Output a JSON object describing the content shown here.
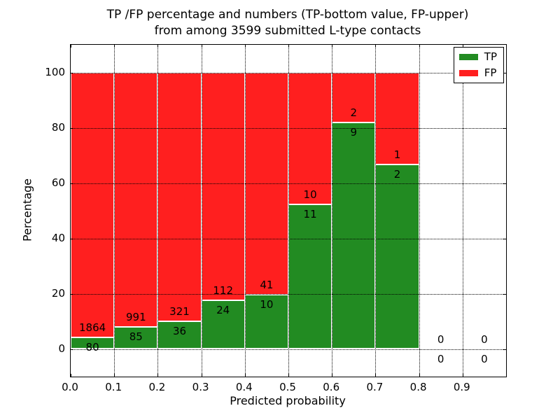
{
  "chart_data": {
    "type": "bar",
    "stacked": true,
    "normalized_to_percent": true,
    "title_lines": [
      "TP /FP percentage and numbers (TP-bottom value, FP-upper)",
      "from among 3599 submitted L-type contacts"
    ],
    "total_contacts": 3599,
    "xlabel": "Predicted probability",
    "ylabel": "Percentage",
    "xlim": [
      0.0,
      1.0
    ],
    "ylim": [
      -10,
      110
    ],
    "xtick_values": [
      0.0,
      0.1,
      0.2,
      0.3,
      0.4,
      0.5,
      0.6,
      0.7,
      0.8,
      0.9
    ],
    "xtick_labels": [
      "0.0",
      "0.1",
      "0.2",
      "0.3",
      "0.4",
      "0.5",
      "0.6",
      "0.7",
      "0.8",
      "0.9"
    ],
    "ytick_values": [
      0,
      20,
      40,
      60,
      80,
      100
    ],
    "ytick_labels": [
      "0",
      "20",
      "40",
      "60",
      "80",
      "100"
    ],
    "grid": "dotted-black-over-bars",
    "legend_position": "upper right",
    "series": [
      {
        "name": "TP",
        "color": "#228b22"
      },
      {
        "name": "FP",
        "color": "#ff1f1f"
      }
    ],
    "bin_width": 0.1,
    "bins": [
      {
        "x_start": 0.0,
        "x_end": 0.1,
        "tp_count": 80,
        "fp_count": 1864,
        "tp_percent": 4.12,
        "fp_percent": 95.88
      },
      {
        "x_start": 0.1,
        "x_end": 0.2,
        "tp_count": 85,
        "fp_count": 991,
        "tp_percent": 7.9,
        "fp_percent": 92.1
      },
      {
        "x_start": 0.2,
        "x_end": 0.3,
        "tp_count": 36,
        "fp_count": 321,
        "tp_percent": 10.08,
        "fp_percent": 89.92
      },
      {
        "x_start": 0.3,
        "x_end": 0.4,
        "tp_count": 24,
        "fp_count": 112,
        "tp_percent": 17.65,
        "fp_percent": 82.35
      },
      {
        "x_start": 0.4,
        "x_end": 0.5,
        "tp_count": 10,
        "fp_count": 41,
        "tp_percent": 19.61,
        "fp_percent": 80.39
      },
      {
        "x_start": 0.5,
        "x_end": 0.6,
        "tp_count": 11,
        "fp_count": 10,
        "tp_percent": 52.38,
        "fp_percent": 47.62
      },
      {
        "x_start": 0.6,
        "x_end": 0.7,
        "tp_count": 9,
        "fp_count": 2,
        "tp_percent": 81.82,
        "fp_percent": 18.18
      },
      {
        "x_start": 0.7,
        "x_end": 0.8,
        "tp_count": 2,
        "fp_count": 1,
        "tp_percent": 66.67,
        "fp_percent": 33.33
      },
      {
        "x_start": 0.8,
        "x_end": 0.9,
        "tp_count": 0,
        "fp_count": 0,
        "tp_percent": null,
        "fp_percent": null
      },
      {
        "x_start": 0.9,
        "x_end": 1.0,
        "tp_count": 0,
        "fp_count": 0,
        "tp_percent": null,
        "fp_percent": null
      }
    ]
  }
}
